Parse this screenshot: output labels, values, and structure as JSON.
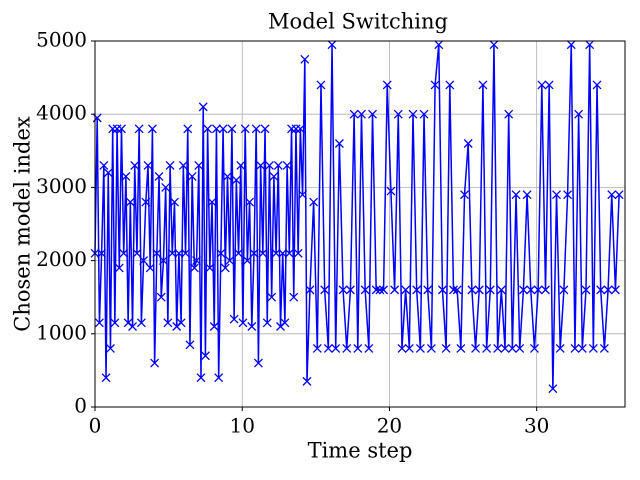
{
  "chart_data": {
    "type": "line",
    "title": "Model Switching",
    "xlabel": "Time step",
    "ylabel": "Chosen model index",
    "color": "#0000ff",
    "marker": "x",
    "grid": true,
    "xlim": [
      0,
      36
    ],
    "xticks": [
      0,
      10,
      20,
      30
    ],
    "ylim": [
      0,
      5000
    ],
    "yticks": [
      0,
      1000,
      2000,
      3000,
      4000,
      5000
    ],
    "x": [
      0,
      0.15,
      0.3,
      0.45,
      0.6,
      0.75,
      0.9,
      1.05,
      1.2,
      1.35,
      1.5,
      1.65,
      1.8,
      1.95,
      2.1,
      2.25,
      2.4,
      2.55,
      2.7,
      2.85,
      3,
      3.15,
      3.3,
      3.45,
      3.6,
      3.75,
      3.9,
      4.05,
      4.2,
      4.35,
      4.5,
      4.65,
      4.8,
      4.95,
      5.1,
      5.25,
      5.4,
      5.55,
      5.7,
      5.85,
      6,
      6.15,
      6.3,
      6.45,
      6.6,
      6.75,
      6.9,
      7.05,
      7.2,
      7.35,
      7.5,
      7.65,
      7.8,
      7.95,
      8.1,
      8.25,
      8.4,
      8.55,
      8.7,
      8.85,
      9,
      9.15,
      9.3,
      9.45,
      9.6,
      9.75,
      9.9,
      10.05,
      10.2,
      10.35,
      10.5,
      10.65,
      10.8,
      10.95,
      11.1,
      11.25,
      11.4,
      11.55,
      11.7,
      11.85,
      12,
      12.15,
      12.3,
      12.45,
      12.6,
      12.75,
      12.9,
      13.05,
      13.2,
      13.35,
      13.5,
      13.65,
      13.8,
      13.95,
      14.1,
      14.25,
      14.4,
      14.6,
      14.85,
      15.1,
      15.35,
      15.6,
      15.85,
      16.1,
      16.35,
      16.6,
      16.85,
      17.1,
      17.35,
      17.6,
      17.85,
      18.1,
      18.35,
      18.6,
      18.85,
      19.1,
      19.35,
      19.6,
      19.85,
      20.1,
      20.35,
      20.6,
      20.85,
      21.1,
      21.35,
      21.6,
      21.85,
      22.1,
      22.35,
      22.6,
      22.85,
      23.1,
      23.35,
      23.6,
      23.85,
      24.1,
      24.35,
      24.6,
      24.85,
      25.1,
      25.35,
      25.6,
      25.85,
      26.1,
      26.35,
      26.6,
      26.85,
      27.1,
      27.35,
      27.6,
      27.85,
      28.1,
      28.35,
      28.6,
      28.85,
      29.1,
      29.35,
      29.6,
      29.85,
      30.1,
      30.35,
      30.6,
      30.85,
      31.1,
      31.35,
      31.6,
      31.85,
      32.1,
      32.35,
      32.6,
      32.85,
      33.1,
      33.35,
      33.6,
      33.85,
      34.1,
      34.35,
      34.6,
      34.85,
      35.1,
      35.35,
      35.6
    ],
    "values": [
      2100,
      3950,
      1150,
      2100,
      3300,
      400,
      3200,
      800,
      3800,
      1150,
      3800,
      1900,
      3800,
      2100,
      3150,
      1150,
      2800,
      1100,
      3300,
      2100,
      3800,
      1150,
      2000,
      2800,
      3300,
      1900,
      3800,
      600,
      2100,
      3150,
      1500,
      2000,
      3000,
      1150,
      3300,
      2100,
      2800,
      1100,
      2100,
      1150,
      3300,
      2100,
      3800,
      850,
      3150,
      1900,
      2000,
      3300,
      400,
      4100,
      700,
      3800,
      1900,
      2800,
      1100,
      3800,
      400,
      2100,
      3800,
      1900,
      3150,
      2000,
      3800,
      1200,
      3100,
      2100,
      3300,
      1150,
      3800,
      2000,
      2800,
      1100,
      2100,
      3800,
      600,
      3300,
      2100,
      3800,
      1150,
      3300,
      1500,
      3150,
      2100,
      3300,
      1100,
      2100,
      1150,
      3300,
      2100,
      3800,
      1500,
      3800,
      2100,
      3800,
      2900,
      4750,
      350,
      1600,
      2800,
      800,
      4400,
      1600,
      800,
      4950,
      800,
      3600,
      1600,
      800,
      1600,
      4000,
      800,
      4000,
      1600,
      800,
      4000,
      1600,
      1600,
      1600,
      4400,
      2950,
      1600,
      4000,
      800,
      1600,
      800,
      4000,
      1600,
      800,
      4000,
      1600,
      800,
      4400,
      4950,
      1600,
      800,
      4400,
      1600,
      1600,
      800,
      2900,
      3600,
      1600,
      800,
      1600,
      4400,
      800,
      1600,
      4950,
      800,
      1600,
      800,
      4000,
      800,
      2900,
      800,
      1600,
      2900,
      1600,
      800,
      1600,
      4400,
      1600,
      4400,
      250,
      2900,
      800,
      1600,
      2900,
      4950,
      800,
      4000,
      800,
      1600,
      4950,
      800,
      4400,
      1600,
      800,
      1600,
      2900,
      1600,
      2900
    ]
  }
}
